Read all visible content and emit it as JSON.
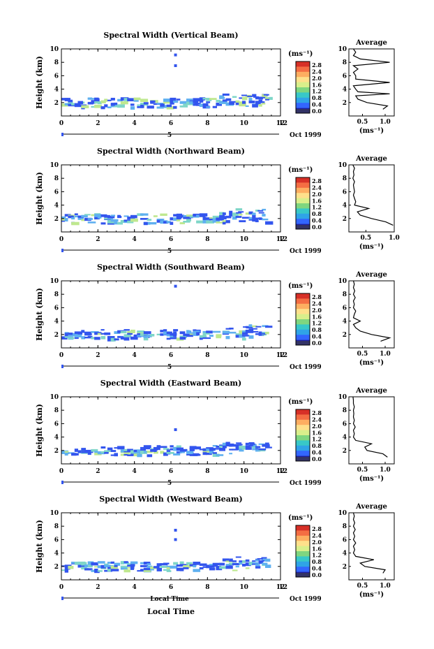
{
  "xlabel_bottom": "Local Time",
  "date_label": "Oct 1999",
  "unit_label": "(ms⁻¹)",
  "avg_title": "Average",
  "ylabel": "Height (km)",
  "colorbar_ticks": [
    "2.8",
    "2.4",
    "2.0",
    "1.6",
    "1.2",
    "0.8",
    "0.4",
    "0.0"
  ],
  "colorbar_colors": [
    "#d73027",
    "#f46d43",
    "#fdae61",
    "#fee08b",
    "#d9ef8b",
    "#7fd67f",
    "#38c8c8",
    "#2fa4e7",
    "#3366ff",
    "#1e1ea0"
  ],
  "series_color": "#3355ee",
  "chart_data": [
    {
      "type": "heatmap",
      "title": "Spectral Width (Vertical Beam)",
      "xlabel": "5",
      "ylabel": "Height (km)",
      "xlim": [
        0,
        12
      ],
      "ylim": [
        0,
        10
      ],
      "xticks": [
        "0",
        "2",
        "4",
        "6",
        "8",
        "10",
        "12"
      ],
      "yticks": [
        "2",
        "4",
        "6",
        "8",
        "10"
      ],
      "isolated_points": [
        [
          6.25,
          9.1
        ],
        [
          6.25,
          7.5
        ]
      ],
      "layer": {
        "x_start": 0,
        "x_end": 11.3,
        "height_min": 0.8,
        "height_max": 3.0
      },
      "profile": {
        "title": "Average",
        "xticks": [
          "0.5",
          "1.0"
        ],
        "xlim": [
          0.2,
          1.2
        ],
        "heights": [
          1.0,
          1.5,
          2.0,
          2.5,
          3.0,
          3.3,
          3.6,
          4.0,
          4.5,
          5.0,
          5.5,
          6.0,
          6.5,
          7.0,
          7.5,
          8.0,
          8.5,
          9.0,
          9.5,
          10.0
        ],
        "values": [
          0.95,
          1.05,
          0.6,
          0.4,
          0.35,
          1.1,
          0.4,
          0.35,
          0.3,
          1.1,
          0.35,
          0.35,
          0.3,
          0.4,
          0.3,
          1.1,
          0.45,
          0.3,
          0.35,
          0.3
        ]
      }
    },
    {
      "type": "heatmap",
      "title": "Spectral Width (Northward Beam)",
      "xlabel": "5",
      "ylabel": "Height (km)",
      "xlim": [
        0,
        12
      ],
      "ylim": [
        0,
        10
      ],
      "xticks": [
        "0",
        "2",
        "4",
        "6",
        "8",
        "10",
        "12"
      ],
      "yticks": [
        "2",
        "4",
        "6",
        "8",
        "10"
      ],
      "isolated_points": [],
      "layer": {
        "x_start": 0,
        "x_end": 11.3,
        "height_min": 0.8,
        "height_max": 3.0
      },
      "profile": {
        "title": "Average",
        "xticks": [
          "0.5",
          "1.0"
        ],
        "xlim": [
          0.2,
          1.0
        ],
        "heights": [
          1.0,
          1.5,
          2.0,
          2.5,
          3.0,
          3.5,
          4.0,
          4.5,
          5.0,
          5.5,
          6.0,
          6.5,
          7.0,
          7.5,
          8.0,
          8.5,
          9.0,
          9.5,
          10.0
        ],
        "values": [
          0.98,
          0.85,
          0.6,
          0.4,
          0.35,
          0.55,
          0.3,
          0.32,
          0.3,
          0.28,
          0.3,
          0.29,
          0.28,
          0.3,
          0.27,
          0.29,
          0.28,
          0.3,
          0.27
        ]
      }
    },
    {
      "type": "heatmap",
      "title": "Spectral Width (Southward Beam)",
      "xlabel": "5",
      "ylabel": "Height (km)",
      "xlim": [
        0,
        12
      ],
      "ylim": [
        0,
        10
      ],
      "xticks": [
        "0",
        "2",
        "4",
        "6",
        "8",
        "10",
        "12"
      ],
      "yticks": [
        "2",
        "4",
        "6",
        "8",
        "10"
      ],
      "isolated_points": [
        [
          6.25,
          9.2
        ]
      ],
      "layer": {
        "x_start": 0,
        "x_end": 11.3,
        "height_min": 0.8,
        "height_max": 3.0
      },
      "profile": {
        "title": "Average",
        "xticks": [
          "0.5",
          "1.0"
        ],
        "xlim": [
          0.2,
          1.2
        ],
        "heights": [
          1.0,
          1.5,
          2.0,
          2.5,
          3.0,
          3.5,
          4.0,
          4.5,
          5.0,
          5.5,
          6.0,
          6.5,
          7.0,
          7.5,
          8.0,
          8.5,
          9.0,
          9.5,
          10.0
        ],
        "values": [
          0.9,
          1.1,
          0.7,
          0.45,
          0.35,
          0.3,
          0.45,
          0.3,
          0.32,
          0.35,
          0.3,
          0.32,
          0.3,
          0.34,
          0.3,
          0.33,
          0.3,
          0.32,
          0.3
        ]
      }
    },
    {
      "type": "heatmap",
      "title": "Spectral Width (Eastward Beam)",
      "xlabel": "5",
      "ylabel": "Height (km)",
      "xlim": [
        0,
        12
      ],
      "ylim": [
        0,
        10
      ],
      "xticks": [
        "0",
        "2",
        "4",
        "6",
        "8",
        "10",
        "12"
      ],
      "yticks": [
        "2",
        "4",
        "6",
        "8",
        "10"
      ],
      "isolated_points": [
        [
          6.25,
          5.1
        ]
      ],
      "layer": {
        "x_start": 0,
        "x_end": 11.3,
        "height_min": 0.8,
        "height_max": 3.0
      },
      "profile": {
        "title": "Average",
        "xticks": [
          "0.5",
          "1.0"
        ],
        "xlim": [
          0.2,
          1.2
        ],
        "heights": [
          1.0,
          1.5,
          2.0,
          2.5,
          3.0,
          3.5,
          4.0,
          4.5,
          5.0,
          5.5,
          6.0,
          6.5,
          7.0,
          7.5,
          8.0,
          8.5,
          9.0,
          9.5,
          10.0
        ],
        "values": [
          1.05,
          0.95,
          0.6,
          0.55,
          0.7,
          0.35,
          0.3,
          0.32,
          0.3,
          0.34,
          0.3,
          0.32,
          0.3,
          0.31,
          0.3,
          0.32,
          0.3,
          0.3,
          0.29
        ]
      }
    },
    {
      "type": "heatmap",
      "title": "Spectral Width (Westward Beam)",
      "xlabel": "Local Time",
      "ylabel": "Height (km)",
      "xlim": [
        0,
        12
      ],
      "ylim": [
        0,
        10
      ],
      "xticks": [
        "0",
        "2",
        "4",
        "6",
        "8",
        "10",
        "12"
      ],
      "yticks": [
        "2",
        "4",
        "6",
        "8",
        "10"
      ],
      "isolated_points": [
        [
          6.25,
          7.4
        ],
        [
          6.25,
          6.0
        ]
      ],
      "layer": {
        "x_start": 0,
        "x_end": 11.3,
        "height_min": 0.8,
        "height_max": 3.0
      },
      "profile": {
        "title": "Average",
        "xticks": [
          "0.5",
          "1.0"
        ],
        "xlim": [
          0.2,
          1.2
        ],
        "heights": [
          1.0,
          1.5,
          2.0,
          2.5,
          3.0,
          3.5,
          4.0,
          4.5,
          5.0,
          5.5,
          6.0,
          6.5,
          7.0,
          7.5,
          8.0,
          8.5,
          9.0,
          9.5,
          10.0
        ],
        "values": [
          0.95,
          1.0,
          0.55,
          0.45,
          0.75,
          0.35,
          0.3,
          0.33,
          0.3,
          0.35,
          0.3,
          0.33,
          0.3,
          0.34,
          0.3,
          0.33,
          0.3,
          0.32,
          0.3
        ]
      }
    }
  ]
}
